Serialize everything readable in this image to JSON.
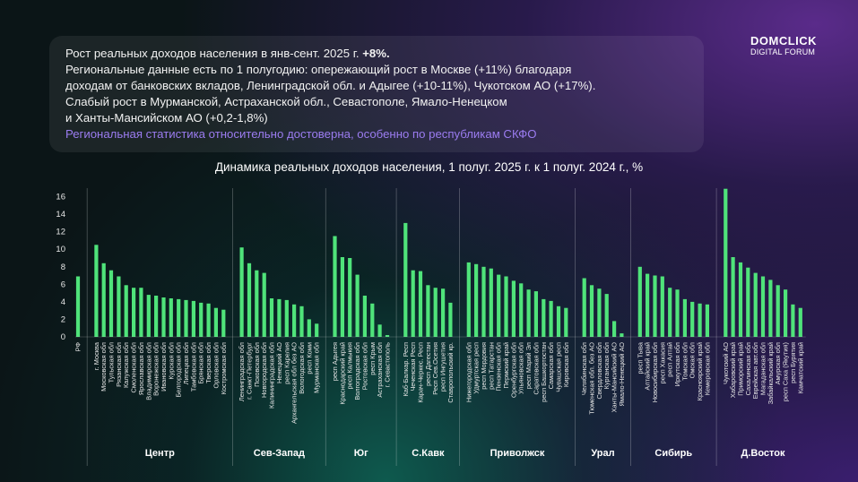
{
  "brand": {
    "line1": "DOMCLICK",
    "line2": "DIGITAL FORUM"
  },
  "summary": {
    "line1_prefix": "Рост реальных доходов населения в янв-сент. 2025 г. ",
    "line1_bold": "+8%.",
    "line2": "Региональные данные есть по 1 полугодию: опережающий рост в Москве (+11%) благодаря",
    "line3": "доходам от банковских вкладов, Ленинградской обл. и Адыгее (+10-11%), Чукотском АО (+17%).",
    "line4": "Слабый рост в Мурманской, Астраханской обл., Севастополе, Ямало-Ненецком",
    "line5": "и Ханты-Мансийском АО (+0,2-1,8%)",
    "line6": "Региональная статистика относительно достоверна, особенно по республикам СКФО"
  },
  "colors": {
    "bar": "#4fe37a",
    "accent": "#9b7cf0"
  },
  "chart_data": {
    "type": "bar",
    "title": "Динамика реальных доходов населения, 1 полуг. 2025 г. к 1 полуг. 2024 г., %",
    "ylim": [
      0,
      16
    ],
    "yticks": [
      0,
      2,
      4,
      6,
      8,
      10,
      12,
      14,
      16
    ],
    "groups": [
      {
        "name": "",
        "categories": [
          "РФ"
        ],
        "values": [
          6.9
        ]
      },
      {
        "name": "Центр",
        "categories": [
          "г. Москва",
          "Московская обл",
          "Тульская обл",
          "Рязанская обл",
          "Калужская обл",
          "Смоленская обл",
          "Ярославская обл",
          "Владимирская обл",
          "Воронежская обл",
          "Ивановская обл",
          "Курская обл",
          "Белгородская обл",
          "Липецкая обл",
          "Тамбовская обл",
          "Брянская обл",
          "Тверская обл",
          "Орловская обл",
          "Костромская обл"
        ],
        "values": [
          10.5,
          8.4,
          7.6,
          6.9,
          5.9,
          5.6,
          5.6,
          4.8,
          4.7,
          4.5,
          4.4,
          4.3,
          4.2,
          4.1,
          3.9,
          3.8,
          3.3,
          3.1
        ]
      },
      {
        "name": "Сев-Запад",
        "categories": [
          "Ленинградская обл",
          "г. Санкт-Петербург",
          "Псковская обл",
          "Новгородская обл",
          "Калининградская обл",
          "Ненецкий АО",
          "респ Карелия",
          "Архангельская обл без АО",
          "Вологодская обл",
          "респ Коми",
          "Мурманская обл"
        ],
        "values": [
          10.2,
          8.4,
          7.6,
          7.3,
          4.4,
          4.3,
          4.2,
          3.7,
          3.5,
          2.0,
          1.5
        ]
      },
      {
        "name": "Юг",
        "categories": [
          "респ Адыгея",
          "Краснодарский край",
          "респ Калмыкия",
          "Волгоградская обл",
          "Ростовская обл",
          "респ Крым",
          "Астраханская обл",
          "г. Севастополь"
        ],
        "values": [
          11.5,
          9.1,
          9.0,
          7.1,
          4.7,
          3.8,
          1.4,
          0.2
        ]
      },
      {
        "name": "С.Кавк",
        "categories": [
          "Каб-Балкар. Респ",
          "Чеченская Респ",
          "Карач-Черкес. Респ",
          "респ Дагестан",
          "Респ Сев.Осетия",
          "респ Ингушетия",
          "Ставропольский кр."
        ],
        "values": [
          13.0,
          7.6,
          7.5,
          5.9,
          5.6,
          5.5,
          3.9
        ]
      },
      {
        "name": "Приволжск",
        "categories": [
          "Нижегородская обл",
          "Удмуртская респ",
          "респ Мордовия",
          "респ Татарстан",
          "Пензенская обл",
          "Пермский край",
          "Оренбургская обл",
          "Ульяновская обл",
          "респ Марий Эл",
          "Саратовская обл",
          "респ Башкортостан",
          "Самарская обл",
          "Чувашская респ",
          "Кировская обл"
        ],
        "values": [
          8.5,
          8.3,
          8.0,
          7.8,
          7.1,
          6.9,
          6.4,
          6.1,
          5.4,
          5.2,
          4.3,
          4.1,
          3.5,
          3.3
        ]
      },
      {
        "name": "Урал",
        "categories": [
          "Челябинская обл",
          "Тюменская обл. без АО",
          "Свердловская обл",
          "Курганская обл",
          "Ханты-Мансийский АО",
          "Ямало-Ненецкий АО"
        ],
        "values": [
          6.7,
          5.9,
          5.5,
          4.9,
          1.8,
          0.4
        ]
      },
      {
        "name": "Сибирь",
        "categories": [
          "респ Тыва",
          "Алтайский край",
          "Новосибирская обл",
          "респ Хакасия",
          "респ Алтай",
          "Иркутская обл",
          "Томская обл",
          "Омская обл",
          "Красноярский край",
          "Кемеровская обл"
        ],
        "values": [
          8.0,
          7.2,
          7.0,
          6.9,
          5.6,
          5.4,
          4.3,
          4.0,
          3.8,
          3.7
        ]
      },
      {
        "name": "Д.Восток",
        "categories": [
          "Чукотский АО",
          "Хабаровский край",
          "Приморский край",
          "Сахалинская обл",
          "Еврейская авт.обл",
          "Магаданская обл",
          "Забайкальский край",
          "Амурская обл",
          "респ Саха (Якутия)",
          "респ Бурятия",
          "Камчатский край"
        ],
        "values": [
          16.9,
          9.1,
          8.5,
          7.9,
          7.3,
          6.9,
          6.5,
          5.9,
          5.4,
          3.7,
          3.3
        ]
      }
    ]
  }
}
